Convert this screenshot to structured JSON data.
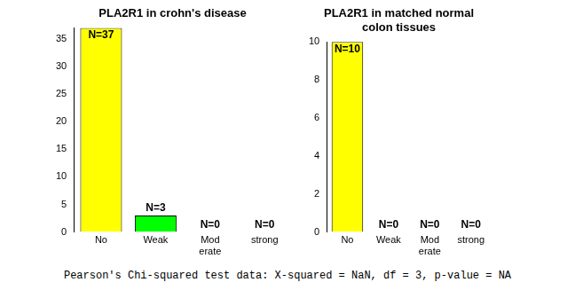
{
  "chart_data": [
    {
      "type": "bar",
      "title": "PLA2R1 in crohn's disease",
      "categories": [
        "No",
        "Weak",
        "Mod\nerate",
        "strong"
      ],
      "values": [
        37,
        3,
        0,
        0
      ],
      "value_labels": [
        "N=37",
        "N=3",
        "N=0",
        "N=0"
      ],
      "colors": [
        "#ffff00",
        "#00ff00",
        "#ffff00",
        "#00ff00"
      ],
      "ylim": [
        0,
        37
      ],
      "yticks": [
        0,
        5,
        10,
        15,
        20,
        25,
        30,
        35
      ],
      "grid": false,
      "data_labels": true
    },
    {
      "type": "bar",
      "title": "PLA2R1 in matched normal\ncolon tissues",
      "categories": [
        "No",
        "Weak",
        "Mod\nerate",
        "strong"
      ],
      "values": [
        10,
        0,
        0,
        0
      ],
      "value_labels": [
        "N=10",
        "N=0",
        "N=0",
        "N=0"
      ],
      "colors": [
        "#ffff00",
        "#00ff00",
        "#ffff00",
        "#00ff00"
      ],
      "ylim": [
        0,
        10
      ],
      "yticks": [
        0,
        2,
        4,
        6,
        8,
        10
      ],
      "grid": false,
      "data_labels": true
    }
  ],
  "footnote": "Pearson's Chi-squared test data: X-squared = NaN, df = 3, p-value = NA"
}
